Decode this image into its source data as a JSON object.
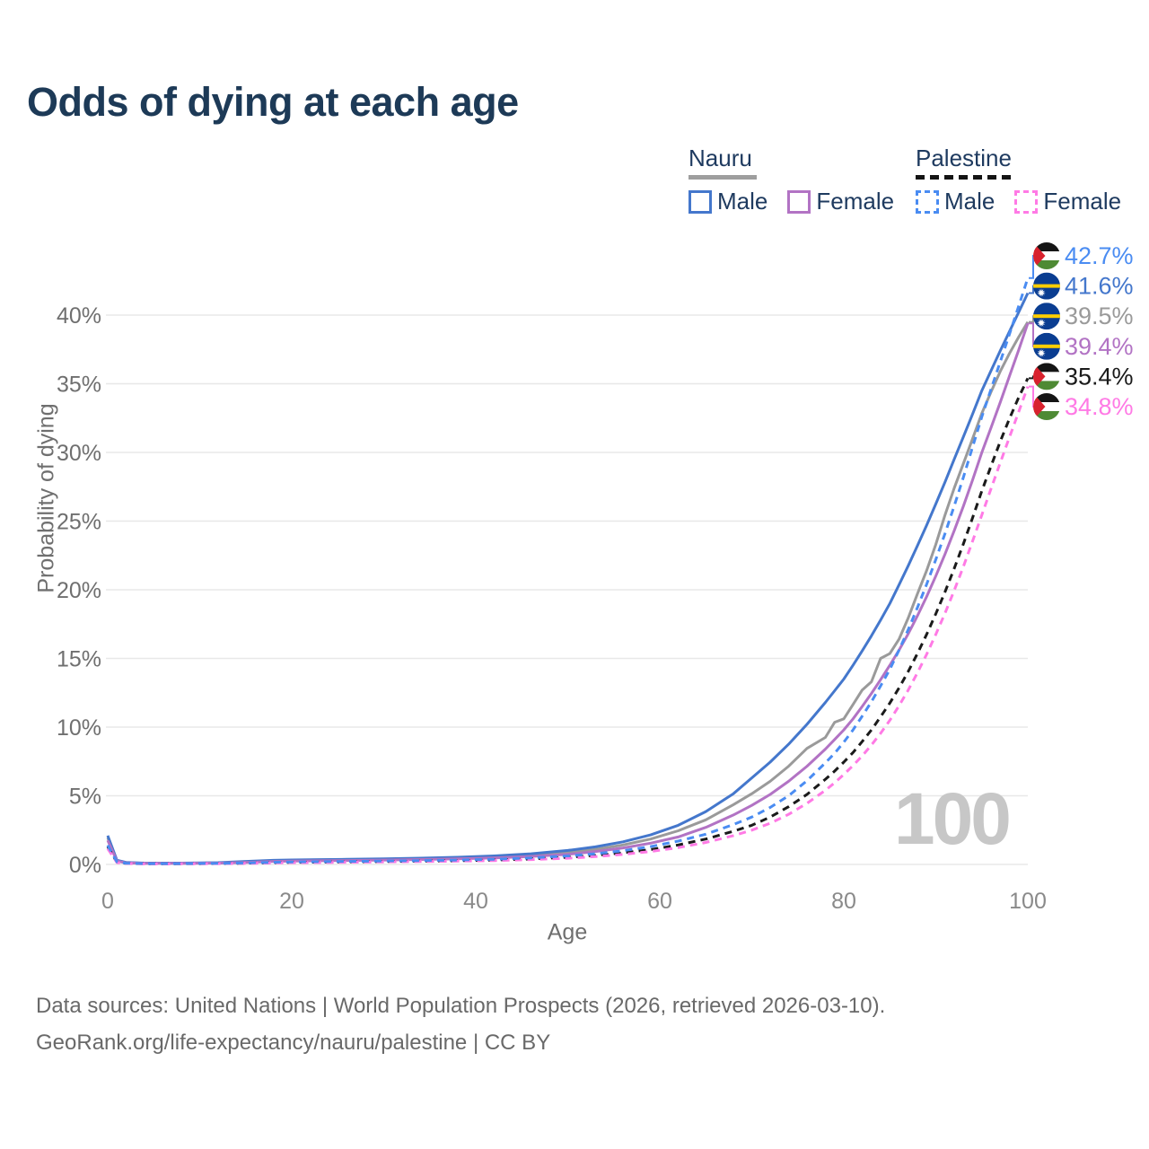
{
  "title": "Odds of dying at each age",
  "legend": {
    "groups": [
      {
        "name": "Nauru",
        "line_style": "solid",
        "underline_color": "#9e9e9e",
        "items": [
          {
            "label": "Male",
            "color": "#4477cc",
            "dashed": false
          },
          {
            "label": "Female",
            "color": "#b273c4",
            "dashed": false
          }
        ]
      },
      {
        "name": "Palestine",
        "line_style": "dashed",
        "underline_color": "#141414",
        "items": [
          {
            "label": "Male",
            "color": "#4a8cf2",
            "dashed": true
          },
          {
            "label": "Female",
            "color": "#ff7ae5",
            "dashed": true
          }
        ]
      }
    ]
  },
  "chart_data": {
    "type": "line",
    "title": "Odds of dying at each age",
    "xlabel": "Age",
    "ylabel": "Probability of dying",
    "xlim": [
      0,
      100
    ],
    "ylim": [
      0,
      44.5
    ],
    "x_ticks": [
      0,
      20,
      40,
      60,
      80,
      100
    ],
    "y_ticks": [
      0,
      5,
      10,
      15,
      20,
      25,
      30,
      35,
      40
    ],
    "y_tick_suffix": "%",
    "grid": "horizontal",
    "legend_position": "top-right",
    "watermark": "100",
    "x": [
      0,
      1,
      2,
      4,
      6,
      8,
      10,
      12,
      15,
      18,
      20,
      23,
      26,
      30,
      34,
      38,
      42,
      46,
      50,
      53,
      56,
      59,
      62,
      65,
      68,
      70,
      72,
      74,
      76,
      78,
      79,
      80,
      81,
      82,
      83,
      84,
      85,
      86,
      87,
      88,
      89,
      90,
      91,
      92,
      93,
      94,
      95,
      96,
      97,
      98,
      99,
      100
    ],
    "series": [
      {
        "name": "Nauru",
        "country": "Nauru",
        "sex": "both",
        "color": "#9a9a9a",
        "dash": null,
        "flag": "nauru",
        "end_value": "39.5%",
        "values": [
          1.95,
          0.27,
          0.13,
          0.09,
          0.09,
          0.09,
          0.1,
          0.11,
          0.18,
          0.26,
          0.29,
          0.31,
          0.33,
          0.36,
          0.41,
          0.46,
          0.54,
          0.68,
          0.88,
          1.1,
          1.42,
          1.85,
          2.45,
          3.25,
          4.35,
          5.15,
          6.05,
          7.15,
          8.45,
          9.25,
          10.35,
          10.6,
          11.65,
          12.7,
          13.3,
          15.0,
          15.35,
          16.4,
          17.95,
          19.7,
          21.4,
          23.3,
          25.45,
          27.4,
          29.2,
          31.0,
          32.85,
          34.4,
          35.9,
          37.2,
          38.4,
          39.5
        ]
      },
      {
        "name": "Nauru Male",
        "country": "Nauru",
        "sex": "male",
        "color": "#4477cc",
        "dash": null,
        "flag": "nauru",
        "end_value": "41.6%",
        "values": [
          2.1,
          0.3,
          0.15,
          0.1,
          0.1,
          0.1,
          0.11,
          0.13,
          0.22,
          0.3,
          0.33,
          0.35,
          0.37,
          0.41,
          0.46,
          0.52,
          0.62,
          0.78,
          1.02,
          1.28,
          1.65,
          2.15,
          2.85,
          3.85,
          5.15,
          6.3,
          7.45,
          8.75,
          10.2,
          11.8,
          12.65,
          13.5,
          14.5,
          15.55,
          16.65,
          17.8,
          19.0,
          20.35,
          21.75,
          23.2,
          24.7,
          26.25,
          27.85,
          29.5,
          31.15,
          32.8,
          34.5,
          35.95,
          37.4,
          38.8,
          40.2,
          41.6
        ]
      },
      {
        "name": "Nauru Female",
        "country": "Nauru",
        "sex": "female",
        "color": "#b273c4",
        "dash": null,
        "flag": "nauru",
        "end_value": "39.4%",
        "values": [
          1.75,
          0.24,
          0.12,
          0.08,
          0.08,
          0.08,
          0.09,
          0.1,
          0.15,
          0.22,
          0.25,
          0.27,
          0.29,
          0.32,
          0.36,
          0.41,
          0.47,
          0.58,
          0.74,
          0.94,
          1.2,
          1.55,
          2.0,
          2.7,
          3.6,
          4.3,
          5.1,
          6.05,
          7.15,
          8.4,
          9.1,
          9.8,
          10.6,
          11.5,
          12.45,
          13.45,
          14.5,
          15.6,
          16.8,
          18.1,
          19.5,
          21.0,
          22.6,
          24.3,
          26.1,
          28.0,
          30.0,
          31.8,
          33.65,
          35.55,
          37.45,
          39.4
        ]
      },
      {
        "name": "Palestine",
        "country": "Palestine",
        "sex": "both",
        "color": "#1a1a1a",
        "dash": "8,6",
        "flag": "palestine",
        "end_value": "35.4%",
        "values": [
          1.3,
          0.16,
          0.08,
          0.05,
          0.05,
          0.05,
          0.06,
          0.07,
          0.09,
          0.13,
          0.15,
          0.17,
          0.18,
          0.21,
          0.24,
          0.27,
          0.32,
          0.4,
          0.52,
          0.66,
          0.84,
          1.08,
          1.42,
          1.85,
          2.42,
          2.85,
          3.45,
          4.2,
          5.1,
          6.2,
          6.8,
          7.45,
          8.15,
          8.95,
          9.8,
          10.75,
          11.75,
          12.85,
          14.05,
          15.35,
          16.75,
          18.25,
          19.85,
          21.55,
          23.35,
          25.25,
          27.2,
          29.0,
          30.8,
          32.45,
          34.0,
          35.4
        ]
      },
      {
        "name": "Palestine Female",
        "country": "Palestine",
        "sex": "female",
        "color": "#ff7ae5",
        "dash": "8,6",
        "flag": "palestine",
        "end_value": "34.8%",
        "values": [
          1.15,
          0.14,
          0.07,
          0.04,
          0.04,
          0.05,
          0.05,
          0.06,
          0.08,
          0.11,
          0.13,
          0.14,
          0.16,
          0.18,
          0.21,
          0.24,
          0.28,
          0.35,
          0.45,
          0.57,
          0.73,
          0.94,
          1.22,
          1.6,
          2.1,
          2.5,
          3.0,
          3.65,
          4.45,
          5.4,
          5.95,
          6.55,
          7.2,
          7.9,
          8.7,
          9.55,
          10.5,
          11.55,
          12.7,
          13.95,
          15.3,
          16.75,
          18.3,
          19.95,
          21.7,
          23.55,
          25.45,
          27.35,
          29.25,
          31.1,
          32.95,
          34.8
        ]
      },
      {
        "name": "Palestine Male",
        "country": "Palestine",
        "sex": "male",
        "color": "#4a8cf2",
        "dash": "8,6",
        "flag": "palestine",
        "end_value": "42.7%",
        "values": [
          1.4,
          0.18,
          0.09,
          0.06,
          0.06,
          0.06,
          0.07,
          0.08,
          0.11,
          0.16,
          0.18,
          0.2,
          0.22,
          0.25,
          0.28,
          0.32,
          0.38,
          0.48,
          0.62,
          0.78,
          1.0,
          1.3,
          1.7,
          2.2,
          2.9,
          3.45,
          4.15,
          5.0,
          6.1,
          7.4,
          8.1,
          8.9,
          9.8,
          10.8,
          11.85,
          13.0,
          14.2,
          15.6,
          17.1,
          18.7,
          20.4,
          22.2,
          24.1,
          26.1,
          28.2,
          30.4,
          32.6,
          34.6,
          36.6,
          38.6,
          40.65,
          42.7
        ]
      }
    ],
    "end_labels": [
      {
        "series": "Palestine Male",
        "text": "42.7%"
      },
      {
        "series": "Nauru Male",
        "text": "41.6%"
      },
      {
        "series": "Nauru",
        "text": "39.5%"
      },
      {
        "series": "Nauru Female",
        "text": "39.4%"
      },
      {
        "series": "Palestine",
        "text": "35.4%"
      },
      {
        "series": "Palestine Female",
        "text": "34.8%"
      }
    ],
    "flag_colors": {
      "nauru": {
        "field": "#0a3d91",
        "stripe": "#ffce00",
        "star": "#ffffff"
      },
      "palestine": {
        "black": "#151515",
        "white": "#ffffff",
        "green": "#4e8a34",
        "red": "#d8222e"
      }
    }
  },
  "footer": {
    "line1": "Data sources: United Nations | World Population Prospects (2026, retrieved 2026-03-10).",
    "line2": "GeoRank.org/life-expectancy/nauru/palestine | CC BY"
  }
}
